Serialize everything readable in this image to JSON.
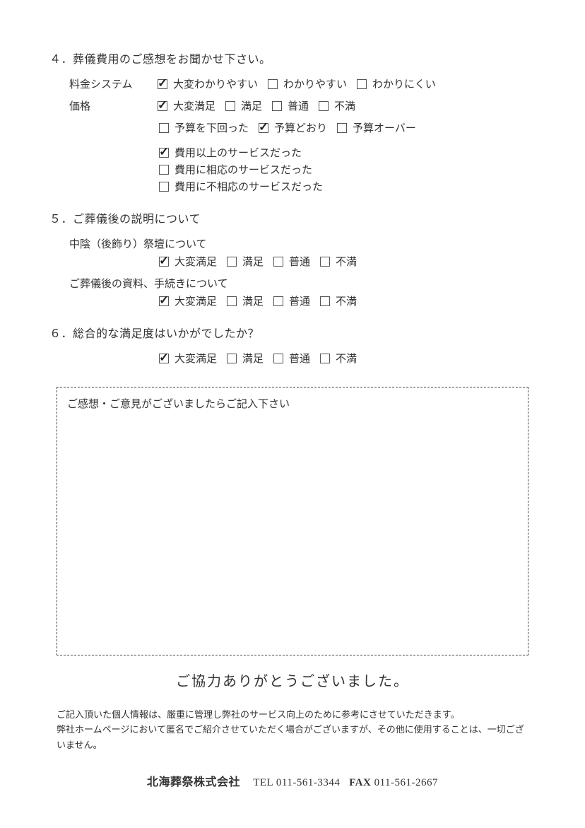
{
  "q4": {
    "title": "４．葬儀費用のご感想をお聞かせ下さい。",
    "rows": [
      {
        "label": "料金システム",
        "options": [
          {
            "text": "大変わかりやすい",
            "checked": true
          },
          {
            "text": "わかりやすい",
            "checked": false
          },
          {
            "text": "わかりにくい",
            "checked": false
          }
        ]
      },
      {
        "label": "価格",
        "options": [
          {
            "text": "大変満足",
            "checked": true
          },
          {
            "text": "満足",
            "checked": false
          },
          {
            "text": "普通",
            "checked": false
          },
          {
            "text": "不満",
            "checked": false
          }
        ]
      }
    ],
    "budget": [
      {
        "text": "予算を下回った",
        "checked": false
      },
      {
        "text": "予算どおり",
        "checked": true
      },
      {
        "text": "予算オーバー",
        "checked": false
      }
    ],
    "service": [
      {
        "text": "費用以上のサービスだった",
        "checked": true
      },
      {
        "text": "費用に相応のサービスだった",
        "checked": false
      },
      {
        "text": "費用に不相応のサービスだった",
        "checked": false
      }
    ]
  },
  "q5": {
    "title": "５．ご葬儀後の説明について",
    "subs": [
      {
        "heading": "中陰（後飾り）祭壇について",
        "options": [
          {
            "text": "大変満足",
            "checked": true
          },
          {
            "text": "満足",
            "checked": false
          },
          {
            "text": "普通",
            "checked": false
          },
          {
            "text": "不満",
            "checked": false
          }
        ]
      },
      {
        "heading": "ご葬儀後の資料、手続きについて",
        "options": [
          {
            "text": "大変満足",
            "checked": true
          },
          {
            "text": "満足",
            "checked": false
          },
          {
            "text": "普通",
            "checked": false
          },
          {
            "text": "不満",
            "checked": false
          }
        ]
      }
    ]
  },
  "q6": {
    "title": "６．総合的な満足度はいかがでしたか？",
    "options": [
      {
        "text": "大変満足",
        "checked": true
      },
      {
        "text": "満足",
        "checked": false
      },
      {
        "text": "普通",
        "checked": false
      },
      {
        "text": "不満",
        "checked": false
      }
    ]
  },
  "commentBox": {
    "prompt": "ご感想・ご意見がございましたらご記入下さい"
  },
  "thanks": "ご協力ありがとうございました。",
  "disclaimer": {
    "line1": "ご記入頂いた個人情報は、厳重に管理し弊社のサービス向上のために参考にさせていただきます。",
    "line2": "弊社ホームページにおいて匿名でご紹介させていただく場合がございますが、その他に使用することは、一切ございません。"
  },
  "footer": {
    "company": "北海葬祭株式会社",
    "telLabel": "TEL",
    "tel": "011-561-3344",
    "faxLabel": "FAX",
    "fax": "011-561-2667"
  }
}
